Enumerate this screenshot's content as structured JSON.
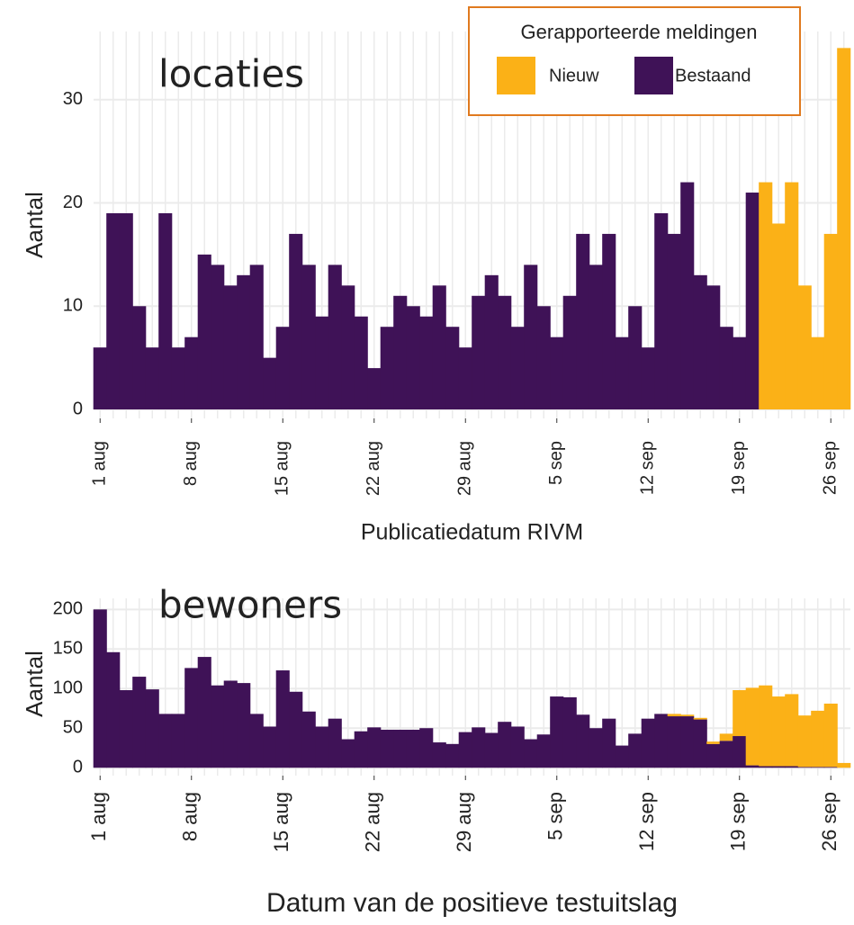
{
  "chart_data": [
    {
      "type": "bar",
      "stacked": true,
      "annotation": "locaties",
      "y_label": "Aantal",
      "x_label": "Publicatiedatum RIVM",
      "legend_title": "Gerapporteerde meldingen",
      "legend_position": "top-right",
      "grid": true,
      "categories": [
        "1 aug",
        null,
        null,
        null,
        null,
        null,
        null,
        "8 aug",
        null,
        null,
        null,
        null,
        null,
        null,
        "15 aug",
        null,
        null,
        null,
        null,
        null,
        null,
        "22 aug",
        null,
        null,
        null,
        null,
        null,
        null,
        "29 aug",
        null,
        null,
        null,
        null,
        null,
        null,
        "5 sep",
        null,
        null,
        null,
        null,
        null,
        null,
        "12 sep",
        null,
        null,
        null,
        null,
        null,
        null,
        "19 sep",
        null,
        null,
        null,
        null,
        null,
        null,
        "26 sep",
        null
      ],
      "series": [
        {
          "name": "Bestaand",
          "color": "#3f1257",
          "values": [
            6,
            19,
            19,
            10,
            6,
            19,
            6,
            7,
            15,
            14,
            12,
            13,
            14,
            5,
            8,
            17,
            14,
            9,
            14,
            12,
            9,
            4,
            8,
            11,
            10,
            9,
            12,
            8,
            6,
            11,
            13,
            11,
            8,
            14,
            10,
            7,
            11,
            17,
            14,
            17,
            7,
            10,
            6,
            19,
            17,
            22,
            13,
            12,
            8,
            7,
            21,
            0,
            0,
            0,
            0,
            0,
            0,
            0
          ]
        },
        {
          "name": "Nieuw",
          "color": "#fbb117",
          "values": [
            0,
            0,
            0,
            0,
            0,
            0,
            0,
            0,
            0,
            0,
            0,
            0,
            0,
            0,
            0,
            0,
            0,
            0,
            0,
            0,
            0,
            0,
            0,
            0,
            0,
            0,
            0,
            0,
            0,
            0,
            0,
            0,
            0,
            0,
            0,
            0,
            0,
            0,
            0,
            0,
            0,
            0,
            0,
            0,
            0,
            0,
            0,
            0,
            0,
            0,
            0,
            22,
            18,
            22,
            12,
            7,
            17,
            35
          ]
        }
      ],
      "ylim": [
        -0.87,
        36.6
      ],
      "yticks": [
        0,
        10,
        20,
        30
      ]
    },
    {
      "type": "bar",
      "stacked": true,
      "annotation": "bewoners",
      "y_label": "Aantal",
      "x_label": "Datum van de positieve testuitslag",
      "grid": true,
      "categories": [
        "1 aug",
        null,
        null,
        null,
        null,
        null,
        null,
        "8 aug",
        null,
        null,
        null,
        null,
        null,
        null,
        "15 aug",
        null,
        null,
        null,
        null,
        null,
        null,
        "22 aug",
        null,
        null,
        null,
        null,
        null,
        null,
        "29 aug",
        null,
        null,
        null,
        null,
        null,
        null,
        "5 sep",
        null,
        null,
        null,
        null,
        null,
        null,
        "12 sep",
        null,
        null,
        null,
        null,
        null,
        null,
        "19 sep",
        null,
        null,
        null,
        null,
        null,
        null,
        "26 sep",
        null
      ],
      "series": [
        {
          "color": "#3f1257",
          "values": [
            200,
            146,
            98,
            115,
            99,
            68,
            68,
            126,
            140,
            104,
            110,
            107,
            68,
            52,
            123,
            96,
            71,
            52,
            62,
            36,
            46,
            51,
            48,
            48,
            48,
            50,
            32,
            30,
            45,
            51,
            44,
            58,
            52,
            36,
            42,
            90,
            89,
            67,
            50,
            62,
            28,
            43,
            62,
            68,
            65,
            65,
            61,
            30,
            34,
            40,
            3,
            2,
            2,
            2,
            1,
            1,
            1,
            0
          ]
        },
        {
          "color": "#fbb117",
          "values": [
            0,
            0,
            0,
            0,
            0,
            0,
            0,
            0,
            0,
            0,
            0,
            0,
            0,
            0,
            0,
            0,
            0,
            0,
            0,
            0,
            0,
            0,
            0,
            0,
            0,
            0,
            0,
            0,
            0,
            0,
            0,
            0,
            0,
            0,
            0,
            0,
            0,
            0,
            0,
            0,
            0,
            0,
            0,
            0,
            3,
            2,
            2,
            3,
            9,
            58,
            98,
            102,
            88,
            91,
            65,
            71,
            80,
            6
          ]
        }
      ],
      "ylim": [
        -10,
        214
      ],
      "yticks": [
        0,
        50,
        100,
        150,
        200
      ]
    }
  ]
}
